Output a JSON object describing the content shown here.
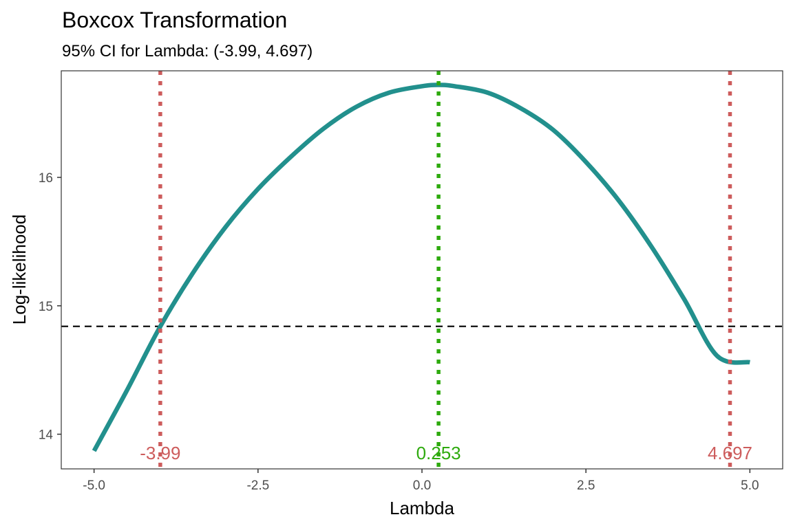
{
  "colors": {
    "curve": "#22908d",
    "ci_line": "#cd5c5c",
    "lambda_line": "#2eaa0e",
    "threshold_line": "#000000",
    "axis_text": "#4d4d4d",
    "panel_border": "#333333"
  },
  "chart_data": {
    "type": "line",
    "title": "Boxcox Transformation",
    "subtitle": "95% CI for Lambda: (-3.99, 4.697)",
    "xlabel": "Lambda",
    "ylabel": "Log-likelihood",
    "xlim": [
      -5.5,
      5.5
    ],
    "ylim": [
      13.73,
      16.83
    ],
    "grid": false,
    "legend": "none",
    "x_ticks": [
      {
        "value": -5.0,
        "label": "-5.0"
      },
      {
        "value": -2.5,
        "label": "-2.5"
      },
      {
        "value": 0.0,
        "label": "0.0"
      },
      {
        "value": 2.5,
        "label": "2.5"
      },
      {
        "value": 5.0,
        "label": "5.0"
      }
    ],
    "y_ticks": [
      {
        "value": 14,
        "label": "14"
      },
      {
        "value": 15,
        "label": "15"
      },
      {
        "value": 16,
        "label": "16"
      }
    ],
    "series": [
      {
        "x": [
          -5.0,
          -4.5,
          -4.0,
          -3.5,
          -3.0,
          -2.5,
          -2.0,
          -1.5,
          -1.0,
          -0.5,
          0.0,
          0.253,
          0.5,
          1.0,
          1.5,
          2.0,
          2.5,
          3.0,
          3.5,
          4.0,
          4.5,
          5.0
        ],
        "y": [
          13.87,
          14.34,
          14.83,
          15.25,
          15.61,
          15.91,
          16.16,
          16.38,
          16.55,
          16.66,
          16.71,
          16.72,
          16.71,
          16.66,
          16.54,
          16.37,
          16.12,
          15.82,
          15.46,
          15.05,
          14.61,
          14.56
        ]
      }
    ],
    "threshold_y": 14.84,
    "vlines": [
      {
        "x": -3.99,
        "label": "-3.99",
        "role": "ci"
      },
      {
        "x": 0.253,
        "label": "0.253",
        "role": "lambda"
      },
      {
        "x": 4.697,
        "label": "4.697",
        "role": "ci"
      }
    ]
  }
}
